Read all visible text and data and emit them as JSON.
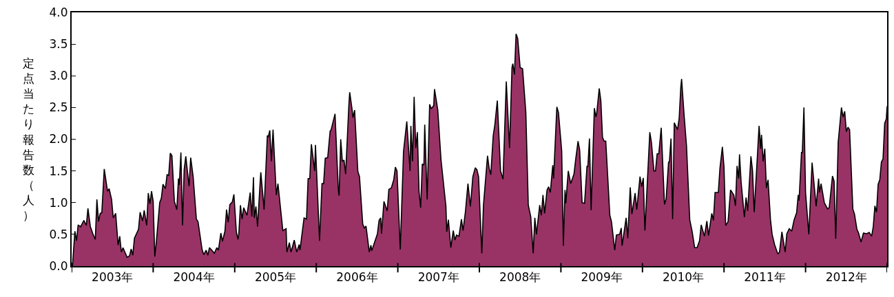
{
  "chart_data": {
    "type": "area",
    "ylabel": "定点当たり報告数（人）",
    "xlim": [
      2003,
      2013
    ],
    "xticks": [
      {
        "value": 2003,
        "label": null
      },
      {
        "value": 2003.5,
        "label": "2003年"
      },
      {
        "value": 2004,
        "label": null
      },
      {
        "value": 2004.5,
        "label": "2004年"
      },
      {
        "value": 2005,
        "label": null
      },
      {
        "value": 2005.5,
        "label": "2005年"
      },
      {
        "value": 2006,
        "label": null
      },
      {
        "value": 2006.5,
        "label": "2006年"
      },
      {
        "value": 2007,
        "label": null
      },
      {
        "value": 2007.5,
        "label": "2007年"
      },
      {
        "value": 2008,
        "label": null
      },
      {
        "value": 2008.5,
        "label": "2008年"
      },
      {
        "value": 2009,
        "label": null
      },
      {
        "value": 2009.5,
        "label": "2009年"
      },
      {
        "value": 2010,
        "label": null
      },
      {
        "value": 2010.5,
        "label": "2010年"
      },
      {
        "value": 2011,
        "label": null
      },
      {
        "value": 2011.5,
        "label": "2011年"
      },
      {
        "value": 2012,
        "label": null
      },
      {
        "value": 2012.5,
        "label": "2012年"
      },
      {
        "value": 2013,
        "label": null
      }
    ],
    "ylim": [
      0,
      4
    ],
    "yticks": [
      {
        "value": 0,
        "label": "0.0"
      },
      {
        "value": 0.5,
        "label": "0.5"
      },
      {
        "value": 1,
        "label": "1.0"
      },
      {
        "value": 1.5,
        "label": "1.5"
      },
      {
        "value": 2,
        "label": "2.0"
      },
      {
        "value": 2.5,
        "label": "2.5"
      },
      {
        "value": 3,
        "label": "3.0"
      },
      {
        "value": 3.5,
        "label": "3.5"
      },
      {
        "value": 4,
        "label": "4.0"
      }
    ],
    "series": [
      {
        "color": "#993366",
        "x": [
          2003.01,
          2003.04,
          2003.06,
          2003.08,
          2003.11,
          2003.15,
          2003.18,
          2003.2,
          2003.23,
          2003.26,
          2003.29,
          2003.31,
          2003.33,
          2003.35,
          2003.37,
          2003.4,
          2003.44,
          2003.46,
          2003.49,
          2003.51,
          2003.54,
          2003.57,
          2003.59,
          2003.61,
          2003.63,
          2003.68,
          2003.71,
          2003.73,
          2003.75,
          2003.77,
          2003.82,
          2003.84,
          2003.87,
          2003.89,
          2003.92,
          2003.94,
          2003.96,
          2003.98,
          2004.0,
          2004.02,
          2004.04,
          2004.08,
          2004.1,
          2004.12,
          2004.15,
          2004.17,
          2004.19,
          2004.21,
          2004.23,
          2004.26,
          2004.29,
          2004.31,
          2004.32,
          2004.34,
          2004.36,
          2004.38,
          2004.4,
          2004.44,
          2004.46,
          2004.49,
          2004.53,
          2004.55,
          2004.6,
          2004.62,
          2004.65,
          2004.67,
          2004.69,
          2004.72,
          2004.75,
          2004.78,
          2004.8,
          2004.83,
          2004.85,
          2004.88,
          2004.9,
          2004.92,
          2004.94,
          2004.97,
          2004.99,
          2005.02,
          2005.04,
          2005.05,
          2005.07,
          2005.09,
          2005.11,
          2005.15,
          2005.19,
          2005.21,
          2005.23,
          2005.24,
          2005.26,
          2005.28,
          2005.31,
          2005.32,
          2005.36,
          2005.4,
          2005.41,
          2005.43,
          2005.45,
          2005.47,
          2005.51,
          2005.53,
          2005.59,
          2005.63,
          2005.64,
          2005.67,
          2005.69,
          2005.73,
          2005.76,
          2005.79,
          2005.8,
          2005.85,
          2005.88,
          2005.9,
          2005.92,
          2005.94,
          2005.98,
          2005.99,
          2006.04,
          2006.07,
          2006.09,
          2006.11,
          2006.14,
          2006.17,
          2006.18,
          2006.23,
          2006.27,
          2006.28,
          2006.3,
          2006.32,
          2006.34,
          2006.36,
          2006.4,
          2006.41,
          2006.44,
          2006.45,
          2006.47,
          2006.51,
          2006.53,
          2006.57,
          2006.59,
          2006.61,
          2006.65,
          2006.67,
          2006.68,
          2006.75,
          2006.77,
          2006.79,
          2006.8,
          2006.83,
          2006.87,
          2006.89,
          2006.92,
          2006.95,
          2006.97,
          2006.99,
          2007.03,
          2007.07,
          2007.11,
          2007.15,
          2007.16,
          2007.18,
          2007.2,
          2007.22,
          2007.24,
          2007.26,
          2007.28,
          2007.3,
          2007.32,
          2007.33,
          2007.36,
          2007.39,
          2007.41,
          2007.44,
          2007.45,
          2007.49,
          2007.53,
          2007.59,
          2007.6,
          2007.62,
          2007.65,
          2007.68,
          2007.7,
          2007.72,
          2007.75,
          2007.78,
          2007.8,
          2007.83,
          2007.86,
          2007.89,
          2007.92,
          2007.95,
          2007.97,
          2007.99,
          2008.03,
          2008.05,
          2008.1,
          2008.12,
          2008.14,
          2008.17,
          2008.19,
          2008.22,
          2008.26,
          2008.29,
          2008.33,
          2008.37,
          2008.4,
          2008.41,
          2008.43,
          2008.45,
          2008.47,
          2008.5,
          2008.53,
          2008.57,
          2008.6,
          2008.63,
          2008.66,
          2008.68,
          2008.7,
          2008.74,
          2008.76,
          2008.78,
          2008.8,
          2008.83,
          2008.85,
          2008.87,
          2008.9,
          2008.91,
          2008.95,
          2008.97,
          2009.01,
          2009.03,
          2009.05,
          2009.06,
          2009.09,
          2009.12,
          2009.16,
          2009.18,
          2009.21,
          2009.23,
          2009.26,
          2009.29,
          2009.32,
          2009.33,
          2009.35,
          2009.37,
          2009.41,
          2009.43,
          2009.44,
          2009.47,
          2009.49,
          2009.51,
          2009.53,
          2009.55,
          2009.6,
          2009.62,
          2009.66,
          2009.68,
          2009.72,
          2009.74,
          2009.75,
          2009.8,
          2009.82,
          2009.85,
          2009.87,
          2009.91,
          2009.93,
          2009.97,
          2009.99,
          2010.01,
          2010.03,
          2010.09,
          2010.11,
          2010.14,
          2010.16,
          2010.18,
          2010.2,
          2010.23,
          2010.27,
          2010.29,
          2010.32,
          2010.33,
          2010.35,
          2010.37,
          2010.39,
          2010.43,
          2010.45,
          2010.47,
          2010.48,
          2010.51,
          2010.54,
          2010.58,
          2010.61,
          2010.64,
          2010.67,
          2010.7,
          2010.72,
          2010.76,
          2010.79,
          2010.81,
          2010.85,
          2010.87,
          2010.89,
          2010.93,
          2010.95,
          2010.98,
          2011.0,
          2011.02,
          2011.05,
          2011.08,
          2011.12,
          2011.14,
          2011.16,
          2011.18,
          2011.19,
          2011.21,
          2011.25,
          2011.27,
          2011.29,
          2011.33,
          2011.35,
          2011.37,
          2011.43,
          2011.45,
          2011.46,
          2011.48,
          2011.5,
          2011.52,
          2011.54,
          2011.57,
          2011.59,
          2011.62,
          2011.66,
          2011.68,
          2011.71,
          2011.75,
          2011.77,
          2011.8,
          2011.83,
          2011.86,
          2011.89,
          2011.91,
          2011.92,
          2011.95,
          2011.96,
          2011.98,
          2012.0,
          2012.04,
          2012.08,
          2012.13,
          2012.16,
          2012.17,
          2012.19,
          2012.23,
          2012.27,
          2012.29,
          2012.33,
          2012.35,
          2012.37,
          2012.4,
          2012.44,
          2012.46,
          2012.48,
          2012.5,
          2012.52,
          2012.54,
          2012.58,
          2012.6,
          2012.63,
          2012.65,
          2012.68,
          2012.71,
          2012.75,
          2012.78,
          2012.81,
          2012.83,
          2012.85,
          2012.87,
          2012.89,
          2012.91,
          2012.93,
          2012.95,
          2012.97,
          2012.99,
          2013.0
        ],
        "values": [
          0,
          0.55,
          0.4,
          0.65,
          0.62,
          0.72,
          0.64,
          0.91,
          0.62,
          0.51,
          0.42,
          1.05,
          0.7,
          0.83,
          0.84,
          1.53,
          1.18,
          1.22,
          1.05,
          0.76,
          0.83,
          0.33,
          0.47,
          0.22,
          0.29,
          0.14,
          0.16,
          0.27,
          0.17,
          0.44,
          0.58,
          0.85,
          0.71,
          0.88,
          0.64,
          1.15,
          0.98,
          1.18,
          1.02,
          0.15,
          0.4,
          1.0,
          1.07,
          1.29,
          1.22,
          1.44,
          1.43,
          1.78,
          1.74,
          1.02,
          0.89,
          1.38,
          1.28,
          1.79,
          0.64,
          1.52,
          1.73,
          1.26,
          1.71,
          1.41,
          0.74,
          0.7,
          0.26,
          0.18,
          0.25,
          0.17,
          0.29,
          0.25,
          0.2,
          0.29,
          0.25,
          0.52,
          0.39,
          0.55,
          0.89,
          0.69,
          0.97,
          1.01,
          1.13,
          0.54,
          0.42,
          0.51,
          0.96,
          0.74,
          0.92,
          0.8,
          1.16,
          0.78,
          1.4,
          0.76,
          0.94,
          0.62,
          1.29,
          1.48,
          0.89,
          2.06,
          2.03,
          2.14,
          1.65,
          2.15,
          1.12,
          1.3,
          0.56,
          0.59,
          0.22,
          0.37,
          0.22,
          0.41,
          0.22,
          0.34,
          0.25,
          0.76,
          0.74,
          1.38,
          1.38,
          1.92,
          1.5,
          1.91,
          0.4,
          1.3,
          1.3,
          1.7,
          1.71,
          2.13,
          2.14,
          2.4,
          1.21,
          1.11,
          2.0,
          1.65,
          1.67,
          1.45,
          2.55,
          2.74,
          2.46,
          2.34,
          2.46,
          1.49,
          1.41,
          0.66,
          0.6,
          0.63,
          0.22,
          0.33,
          0.24,
          0.51,
          0.72,
          0.76,
          0.51,
          1.02,
          0.87,
          1.21,
          1.23,
          1.36,
          1.56,
          1.5,
          0.26,
          1.81,
          2.28,
          1.5,
          2.21,
          1.65,
          2.67,
          1.86,
          2.11,
          1.18,
          0.92,
          1.61,
          1.59,
          2.23,
          1.05,
          2.55,
          2.48,
          2.53,
          2.79,
          2.46,
          1.67,
          0.94,
          0.54,
          0.73,
          0.29,
          0.56,
          0.41,
          0.49,
          0.47,
          0.74,
          0.56,
          0.87,
          1.3,
          0.94,
          1.41,
          1.55,
          1.52,
          1.41,
          0.2,
          0.96,
          1.74,
          1.54,
          1.44,
          2.06,
          2.23,
          2.61,
          1.5,
          1.37,
          2.91,
          1.86,
          3.13,
          3.19,
          3.02,
          3.66,
          3.59,
          3.13,
          3.11,
          2.42,
          0.96,
          0.78,
          0.2,
          0.76,
          0.5,
          0.96,
          0.8,
          1.12,
          0.83,
          1.2,
          1.25,
          1.16,
          1.59,
          1.38,
          2.51,
          2.42,
          1.81,
          0.32,
          1.2,
          0.99,
          1.5,
          1.3,
          1.45,
          1.67,
          1.97,
          1.83,
          1.0,
          0.99,
          1.58,
          1.56,
          2.01,
          0.88,
          2.49,
          2.35,
          2.42,
          2.8,
          2.6,
          2.03,
          1.97,
          1.97,
          0.8,
          0.7,
          0.25,
          0.49,
          0.5,
          0.6,
          0.32,
          0.76,
          0.44,
          1.24,
          0.82,
          1.15,
          0.89,
          1.41,
          1.25,
          1.39,
          0.56,
          2.11,
          1.95,
          1.5,
          1.5,
          1.77,
          1.77,
          2.18,
          0.97,
          1.06,
          1.64,
          1.64,
          2.01,
          0.74,
          2.26,
          2.15,
          2.33,
          2.82,
          2.95,
          2.39,
          1.9,
          0.73,
          0.54,
          0.29,
          0.29,
          0.4,
          0.65,
          0.47,
          0.71,
          0.48,
          0.83,
          0.72,
          1.16,
          1.16,
          1.54,
          1.88,
          1.56,
          0.64,
          0.7,
          1.2,
          1.12,
          0.95,
          1.58,
          1.38,
          1.76,
          1.32,
          0.77,
          1.08,
          0.87,
          1.73,
          1.5,
          0.85,
          2.21,
          1.85,
          2.07,
          1.65,
          1.85,
          1.23,
          1.36,
          0.73,
          0.5,
          0.34,
          0.19,
          0.22,
          0.54,
          0.22,
          0.51,
          0.59,
          0.55,
          0.73,
          0.84,
          1.12,
          1.03,
          1.79,
          1.79,
          2.5,
          1.16,
          0.5,
          1.63,
          0.94,
          1.38,
          1.16,
          1.3,
          1.0,
          0.9,
          0.92,
          1.42,
          1.34,
          0.43,
          1.95,
          2.5,
          2.35,
          2.44,
          2.12,
          2.19,
          2.15,
          0.9,
          0.82,
          0.58,
          0.52,
          0.38,
          0.52,
          0.51,
          0.53,
          0.47,
          0.62,
          0.95,
          0.85,
          1.29,
          1.36,
          1.64,
          1.69,
          2.25,
          2.32,
          2.52
        ]
      }
    ]
  }
}
